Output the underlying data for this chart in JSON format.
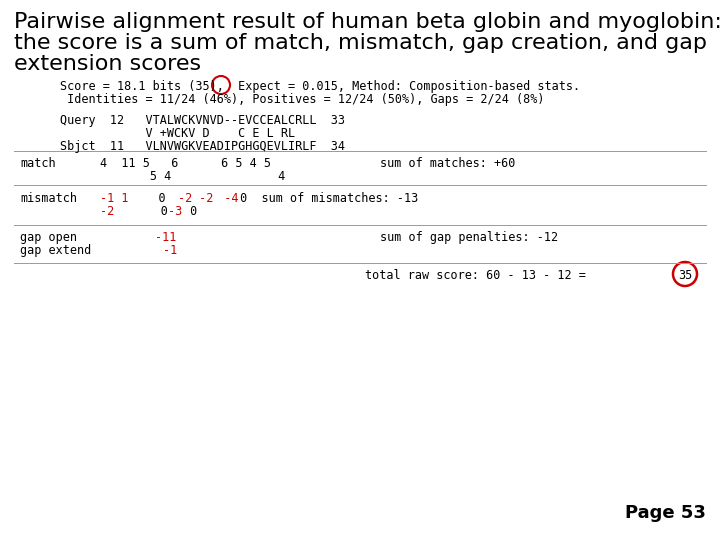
{
  "title_line1": "Pairwise alignment result of human beta globin and myoglobin:",
  "title_line2": "the score is a sum of match, mismatch, gap creation, and gap",
  "title_line3": "extension scores",
  "score_line1": "Score = 18.1 bits (35),  Expect = 0.015, Method: Composition-based stats.",
  "score_line2": " Identities = 11/24 (46%), Positives = 12/24 (50%), Gaps = 2/24 (8%)",
  "page_label": "Page 53",
  "bg_color": "#ffffff",
  "text_color": "#000000",
  "red_color": "#cc0000",
  "title_fontsize": 16,
  "body_fontsize": 8.5,
  "page_fontsize": 13
}
